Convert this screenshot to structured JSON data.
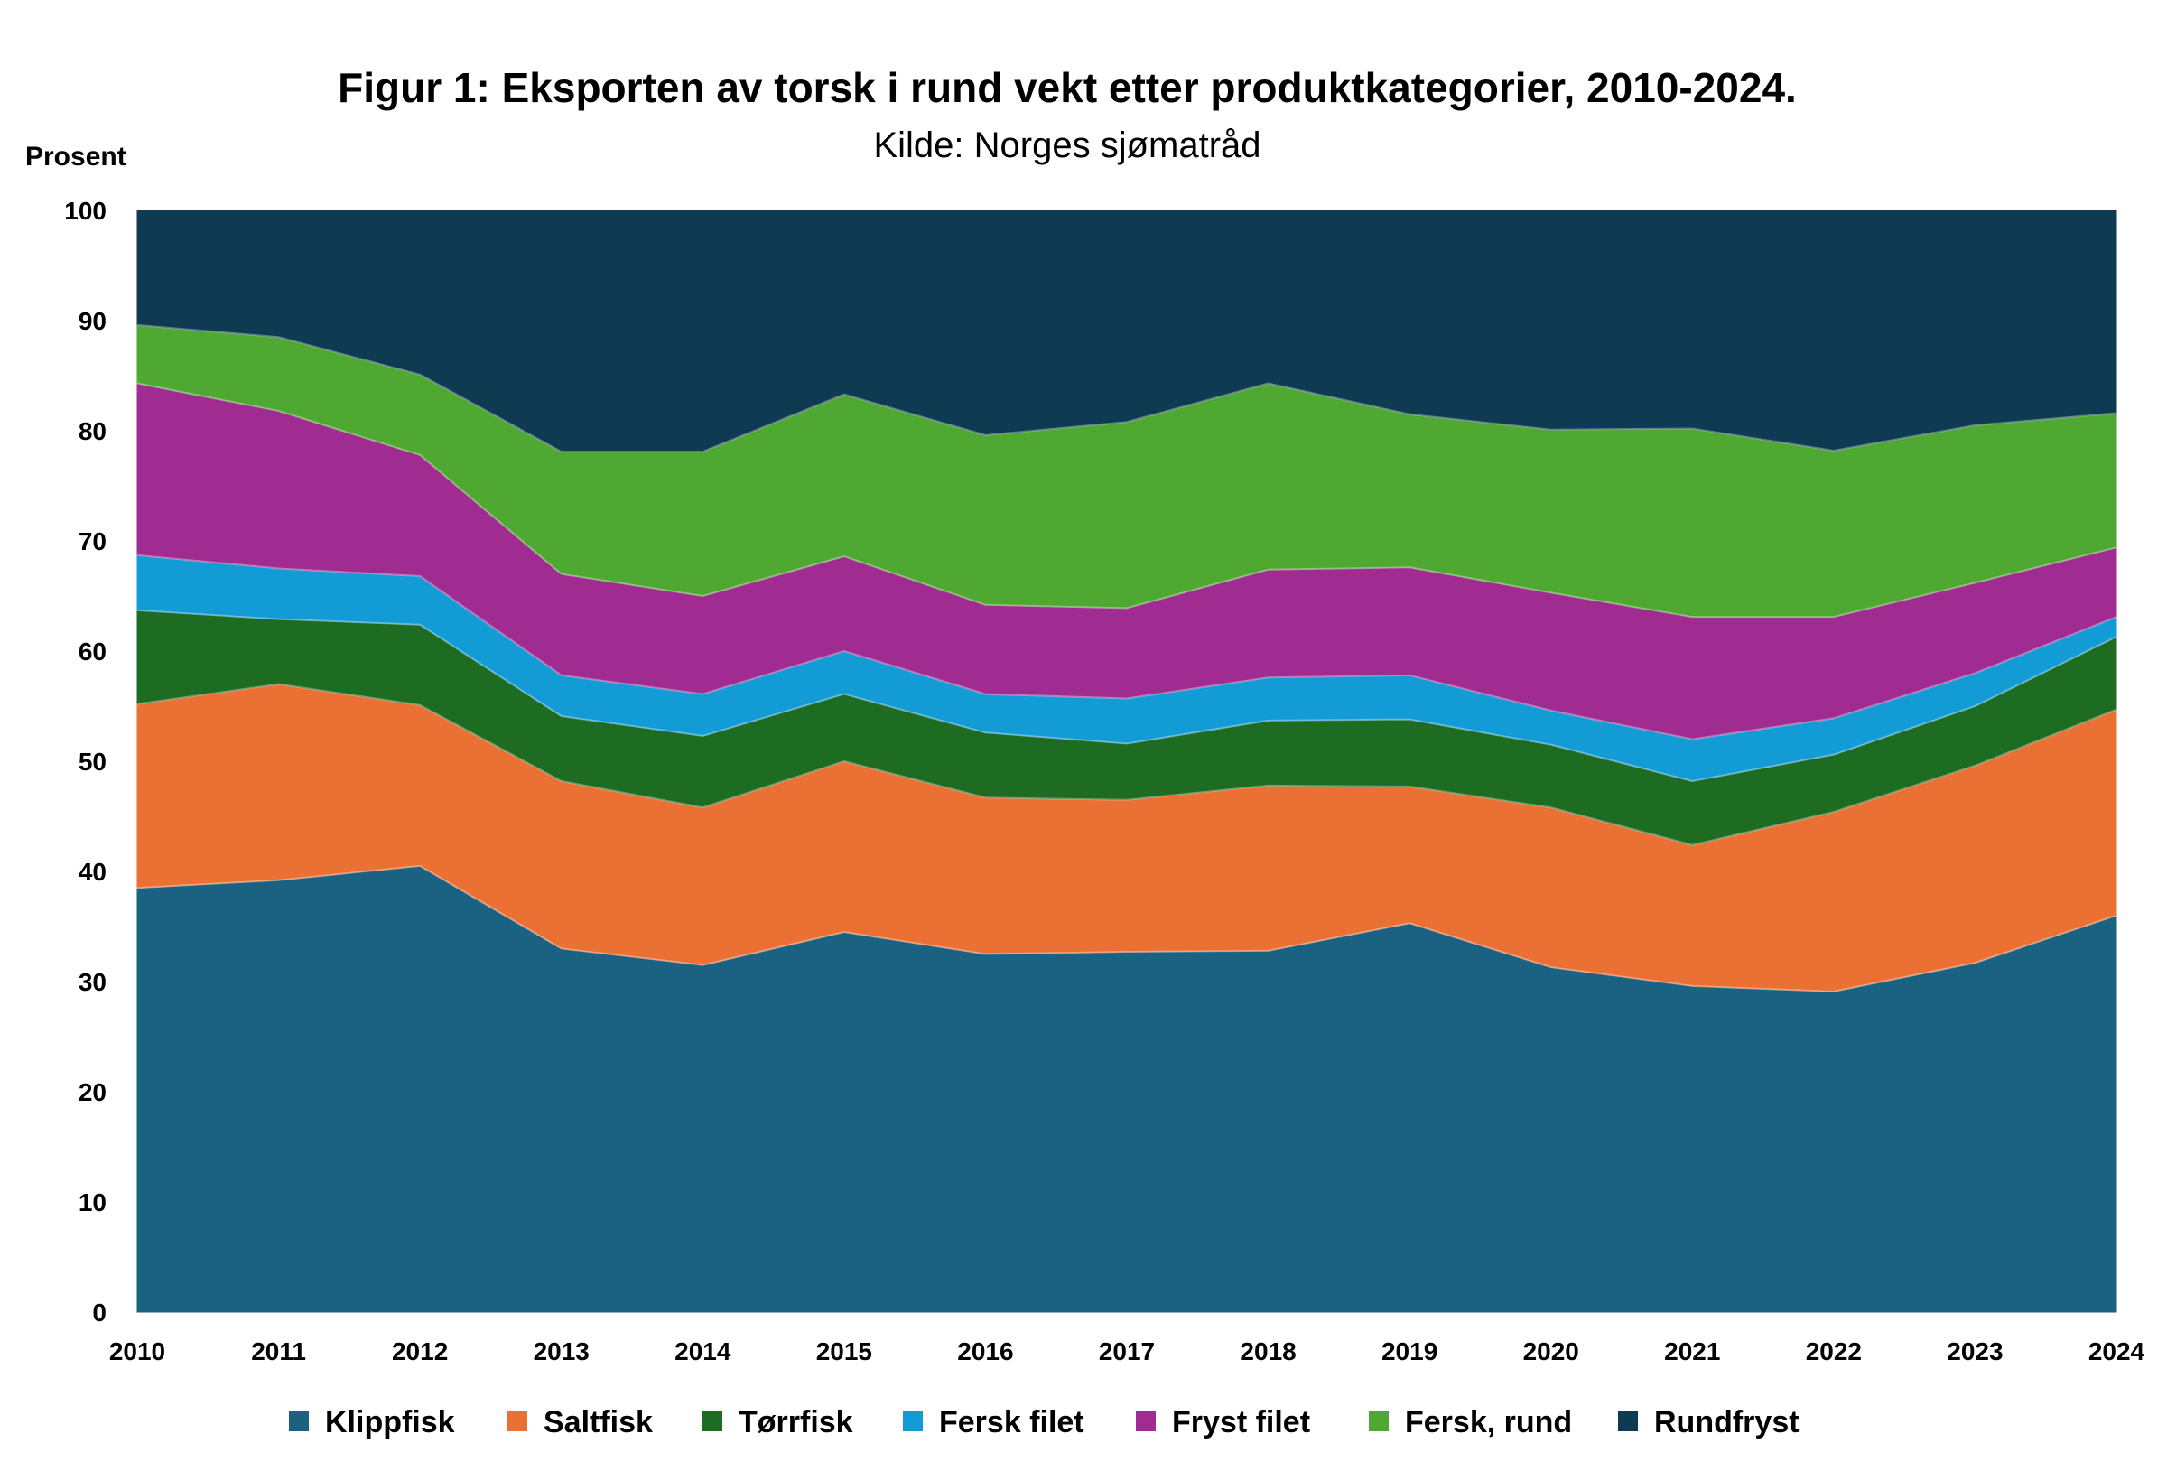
{
  "chart_data": {
    "type": "area",
    "stacked": true,
    "title": "Figur 1: Eksporten av torsk i rund vekt etter produktkategorier, 2010-2024.",
    "subtitle": "Kilde: Norges sjømatråd",
    "ylabel": "Prosent",
    "xlabel": "",
    "ylim": [
      0,
      100
    ],
    "yticks": [
      0,
      10,
      20,
      30,
      40,
      50,
      60,
      70,
      80,
      90,
      100
    ],
    "legend_position": "bottom",
    "grid": false,
    "x": [
      "2010",
      "2011",
      "2012",
      "2013",
      "2014",
      "2015",
      "2016",
      "2017",
      "2018",
      "2019",
      "2020",
      "2021",
      "2022",
      "2023",
      "2024"
    ],
    "series": [
      {
        "name": "Klippfisk",
        "color": "#1a6182",
        "values": [
          38.5,
          39.2,
          40.5,
          33.0,
          31.5,
          34.5,
          32.5,
          32.7,
          32.8,
          35.3,
          31.3,
          29.6,
          29.1,
          31.7,
          36.0
        ]
      },
      {
        "name": "Saltfisk",
        "color": "#ea7133",
        "values": [
          16.7,
          17.8,
          14.6,
          15.2,
          14.3,
          15.5,
          14.2,
          13.8,
          15.0,
          12.4,
          14.5,
          12.8,
          16.3,
          17.9,
          18.7
        ]
      },
      {
        "name": "Tørrfisk",
        "color": "#1e6b22",
        "values": [
          8.5,
          5.9,
          7.3,
          5.9,
          6.5,
          6.1,
          5.9,
          5.1,
          5.9,
          6.1,
          5.7,
          5.8,
          5.2,
          5.4,
          6.6
        ]
      },
      {
        "name": "Fersk filet",
        "color": "#139bd6",
        "values": [
          5.0,
          4.6,
          4.4,
          3.7,
          3.8,
          3.9,
          3.5,
          4.1,
          3.9,
          4.0,
          3.1,
          3.8,
          3.3,
          3.0,
          1.8
        ]
      },
      {
        "name": "Fryst filet",
        "color": "#a12c91",
        "values": [
          15.6,
          14.3,
          11.0,
          9.2,
          8.9,
          8.6,
          8.1,
          8.2,
          9.8,
          9.8,
          10.7,
          11.1,
          9.2,
          8.2,
          6.3
        ]
      },
      {
        "name": "Fersk, rund",
        "color": "#4ea832",
        "values": [
          5.3,
          6.7,
          7.3,
          11.1,
          13.1,
          14.7,
          15.4,
          16.9,
          16.9,
          13.9,
          14.8,
          17.1,
          15.1,
          14.3,
          12.2
        ]
      },
      {
        "name": "Rundfryst",
        "color": "#0e3a52",
        "values": [
          10.4,
          11.5,
          14.9,
          21.9,
          21.9,
          16.7,
          20.4,
          19.2,
          15.7,
          18.5,
          19.9,
          19.8,
          21.8,
          19.5,
          18.4
        ]
      }
    ]
  }
}
